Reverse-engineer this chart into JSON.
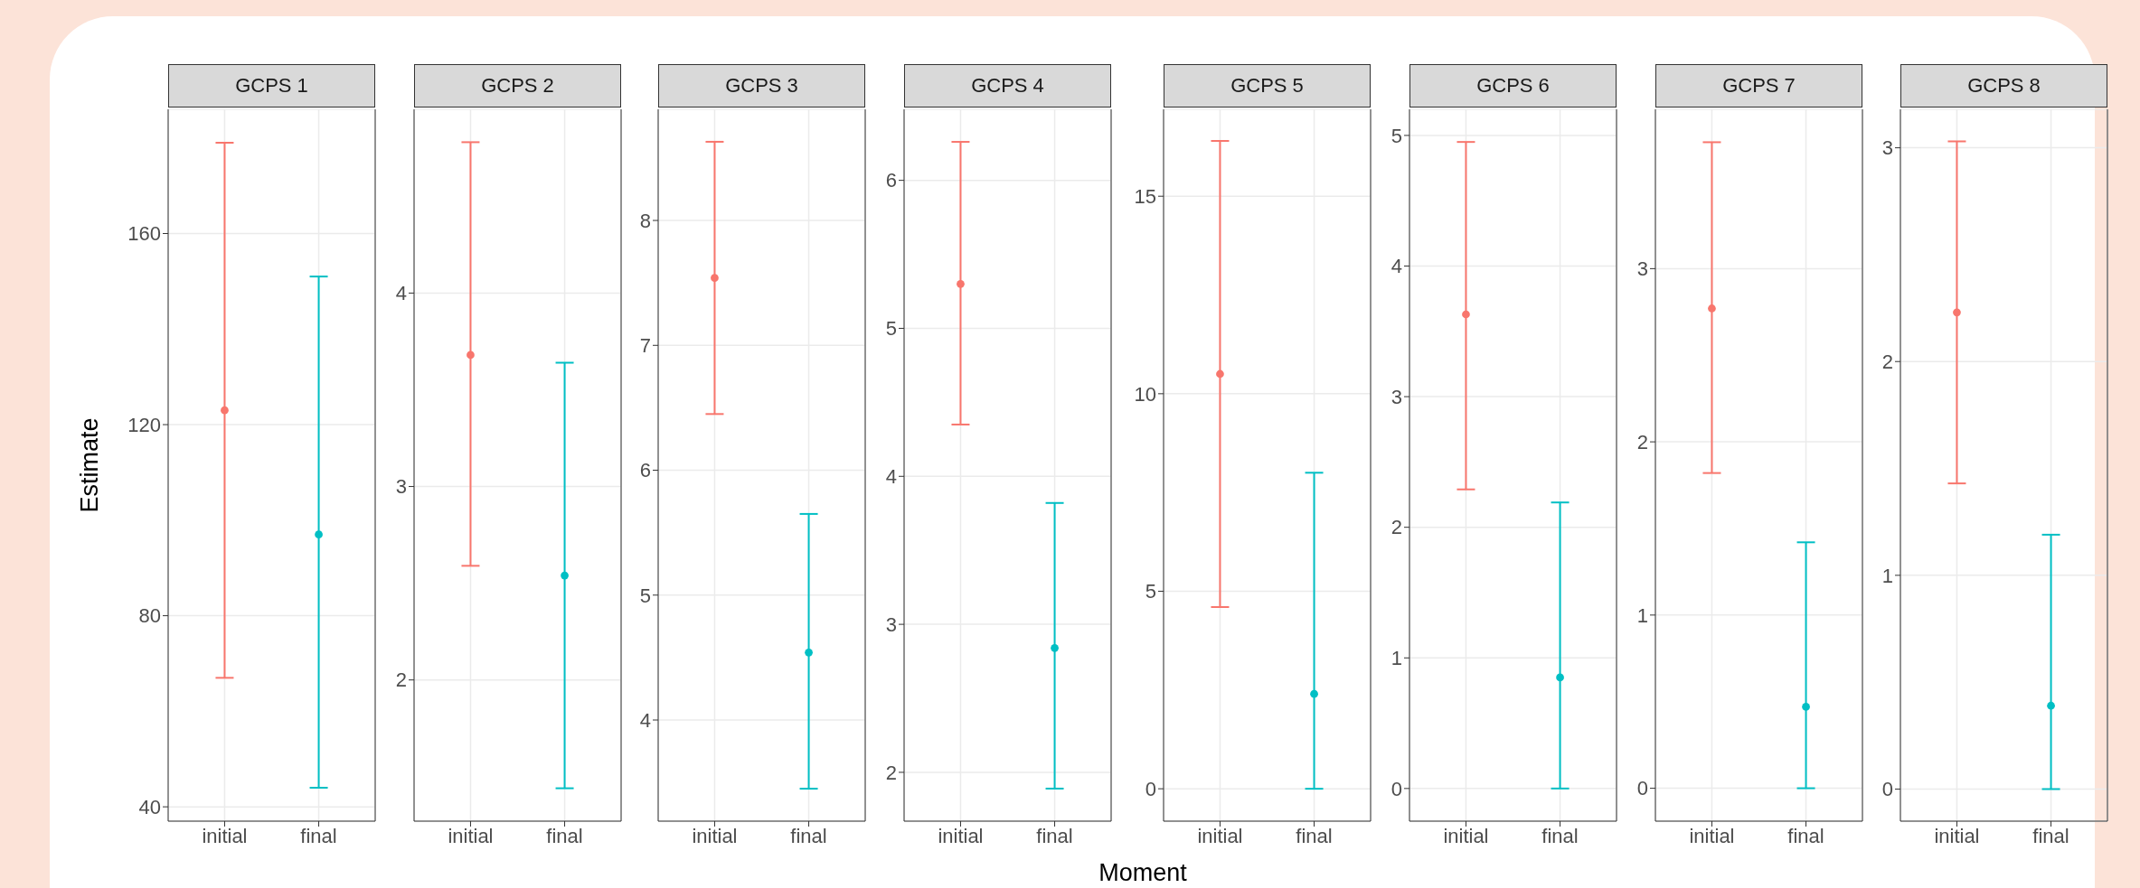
{
  "chart_data": [
    {
      "type": "scatter",
      "title": "GCPS 1",
      "ylabel": "Estimate",
      "categories": [
        "initial",
        "final"
      ],
      "values": [
        123,
        97
      ],
      "errors": [
        [
          67,
          179
        ],
        [
          44,
          151
        ]
      ],
      "colors": [
        "#f8766d",
        "#00bfc4"
      ],
      "ylim": [
        37,
        186
      ],
      "yticks": [
        40,
        80,
        120,
        160
      ],
      "grid": true,
      "marker": "circle"
    },
    {
      "type": "scatter",
      "title": "GCPS 2",
      "categories": [
        "initial",
        "final"
      ],
      "values": [
        3.68,
        2.54
      ],
      "errors": [
        [
          2.59,
          4.78
        ],
        [
          1.44,
          3.64
        ]
      ],
      "colors": [
        "#f8766d",
        "#00bfc4"
      ],
      "ylim": [
        1.27,
        4.95
      ],
      "yticks": [
        2,
        3,
        4
      ],
      "grid": true,
      "marker": "circle"
    },
    {
      "type": "scatter",
      "title": "GCPS 3",
      "categories": [
        "initial",
        "final"
      ],
      "values": [
        7.54,
        4.54
      ],
      "errors": [
        [
          6.45,
          8.63
        ],
        [
          3.45,
          5.65
        ]
      ],
      "colors": [
        "#f8766d",
        "#00bfc4"
      ],
      "ylim": [
        3.19,
        8.89
      ],
      "yticks": [
        4,
        5,
        6,
        7,
        8
      ],
      "grid": true,
      "marker": "circle"
    },
    {
      "type": "scatter",
      "title": "GCPS 4",
      "xlabel": "Moment",
      "categories": [
        "initial",
        "final"
      ],
      "values": [
        5.3,
        2.84
      ],
      "errors": [
        [
          4.35,
          6.26
        ],
        [
          1.89,
          3.82
        ]
      ],
      "colors": [
        "#f8766d",
        "#00bfc4"
      ],
      "ylim": [
        1.67,
        6.48
      ],
      "yticks": [
        2,
        3,
        4,
        5,
        6
      ],
      "grid": true,
      "marker": "circle"
    },
    {
      "type": "scatter",
      "title": "GCPS 5",
      "categories": [
        "initial",
        "final"
      ],
      "values": [
        10.5,
        2.4
      ],
      "errors": [
        [
          4.6,
          16.4
        ],
        [
          0,
          8.0
        ]
      ],
      "colors": [
        "#f8766d",
        "#00bfc4"
      ],
      "ylim": [
        -0.82,
        17.2
      ],
      "yticks": [
        0,
        5,
        10,
        15
      ],
      "grid": true,
      "marker": "circle"
    },
    {
      "type": "scatter",
      "title": "GCPS 6",
      "categories": [
        "initial",
        "final"
      ],
      "values": [
        3.63,
        0.85
      ],
      "errors": [
        [
          2.29,
          4.95
        ],
        [
          0,
          2.19
        ]
      ],
      "colors": [
        "#f8766d",
        "#00bfc4"
      ],
      "ylim": [
        -0.25,
        5.2
      ],
      "yticks": [
        0,
        1,
        2,
        3,
        4,
        5
      ],
      "grid": true,
      "marker": "circle"
    },
    {
      "type": "scatter",
      "title": "GCPS 7",
      "categories": [
        "initial",
        "final"
      ],
      "values": [
        2.77,
        0.47
      ],
      "errors": [
        [
          1.82,
          3.73
        ],
        [
          0,
          1.42
        ]
      ],
      "colors": [
        "#f8766d",
        "#00bfc4"
      ],
      "ylim": [
        -0.19,
        3.92
      ],
      "yticks": [
        0,
        1,
        2,
        3
      ],
      "grid": true,
      "marker": "circle"
    },
    {
      "type": "scatter",
      "title": "GCPS 8",
      "categories": [
        "initial",
        "final"
      ],
      "values": [
        2.23,
        0.39
      ],
      "errors": [
        [
          1.43,
          3.03
        ],
        [
          0,
          1.19
        ]
      ],
      "colors": [
        "#f8766d",
        "#00bfc4"
      ],
      "ylim": [
        -0.15,
        3.18
      ],
      "yticks": [
        0,
        1,
        2,
        3
      ],
      "grid": true,
      "marker": "circle"
    }
  ]
}
